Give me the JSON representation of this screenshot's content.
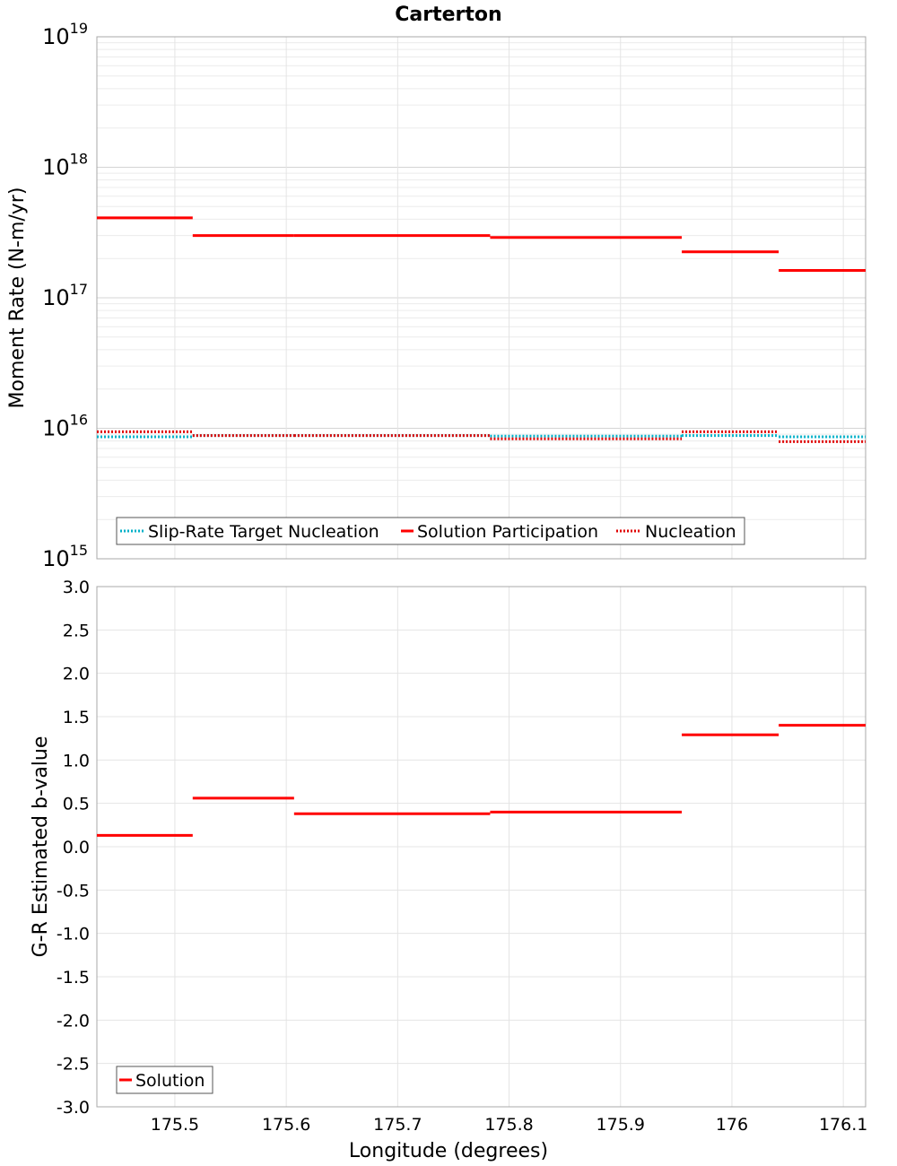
{
  "chart_data": [
    {
      "type": "line",
      "title": "Carterton",
      "ylabel": "Moment Rate (N-m/yr)",
      "xlabel": "",
      "yscale": "log",
      "ylim": [
        1000000000000000.0,
        1e+19
      ],
      "xlim": [
        175.43,
        176.12
      ],
      "ytick_exponents": [
        "15",
        "16",
        "17",
        "18",
        "19"
      ],
      "ytick_base": "10",
      "legend_position": "bottom-left",
      "series": [
        {
          "name": "Slip-Rate Target Nucleation",
          "color": "#00b0c8",
          "style": "dotted",
          "segments": [
            {
              "x0": 175.43,
              "x1": 175.516,
              "y": 8600000000000000.0
            },
            {
              "x0": 175.516,
              "x1": 175.607,
              "y": 8800000000000000.0
            },
            {
              "x0": 175.607,
              "x1": 175.783,
              "y": 8800000000000000.0
            },
            {
              "x0": 175.783,
              "x1": 175.955,
              "y": 8700000000000000.0
            },
            {
              "x0": 175.955,
              "x1": 176.042,
              "y": 8800000000000000.0
            },
            {
              "x0": 176.042,
              "x1": 176.12,
              "y": 8600000000000000.0
            }
          ]
        },
        {
          "name": "Solution Participation",
          "color": "#ff0000",
          "style": "solid",
          "segments": [
            {
              "x0": 175.43,
              "x1": 175.516,
              "y": 4.1e+17
            },
            {
              "x0": 175.516,
              "x1": 175.607,
              "y": 3e+17
            },
            {
              "x0": 175.607,
              "x1": 175.783,
              "y": 3e+17
            },
            {
              "x0": 175.783,
              "x1": 175.955,
              "y": 2.9e+17
            },
            {
              "x0": 175.955,
              "x1": 176.042,
              "y": 2.25e+17
            },
            {
              "x0": 176.042,
              "x1": 176.12,
              "y": 1.62e+17
            }
          ]
        },
        {
          "name": "Nucleation",
          "color": "#e00000",
          "style": "dotted",
          "segments": [
            {
              "x0": 175.43,
              "x1": 175.516,
              "y": 9400000000000000.0
            },
            {
              "x0": 175.516,
              "x1": 175.607,
              "y": 8800000000000000.0
            },
            {
              "x0": 175.607,
              "x1": 175.783,
              "y": 8800000000000000.0
            },
            {
              "x0": 175.783,
              "x1": 175.955,
              "y": 8300000000000000.0
            },
            {
              "x0": 175.955,
              "x1": 176.042,
              "y": 9400000000000000.0
            },
            {
              "x0": 176.042,
              "x1": 176.12,
              "y": 7900000000000000.0
            }
          ]
        }
      ]
    },
    {
      "type": "line",
      "title": "",
      "ylabel": "G-R Estimated b-value",
      "xlabel": "Longitude (degrees)",
      "yscale": "linear",
      "ylim": [
        -3.0,
        3.0
      ],
      "xlim": [
        175.43,
        176.12
      ],
      "yticks": [
        "3.0",
        "2.5",
        "2.0",
        "1.5",
        "1.0",
        "0.5",
        "0.0",
        "-0.5",
        "-1.0",
        "-1.5",
        "-2.0",
        "-2.5",
        "-3.0"
      ],
      "xticks": [
        "175.5",
        "175.6",
        "175.7",
        "175.8",
        "175.9",
        "176",
        "176.1"
      ],
      "legend_position": "bottom-left",
      "series": [
        {
          "name": "Solution",
          "color": "#ff0000",
          "style": "solid",
          "segments": [
            {
              "x0": 175.43,
              "x1": 175.516,
              "y": 0.13
            },
            {
              "x0": 175.516,
              "x1": 175.607,
              "y": 0.56
            },
            {
              "x0": 175.607,
              "x1": 175.783,
              "y": 0.38
            },
            {
              "x0": 175.783,
              "x1": 175.955,
              "y": 0.4
            },
            {
              "x0": 175.955,
              "x1": 176.042,
              "y": 1.29
            },
            {
              "x0": 176.042,
              "x1": 176.12,
              "y": 1.4
            }
          ]
        }
      ]
    }
  ]
}
